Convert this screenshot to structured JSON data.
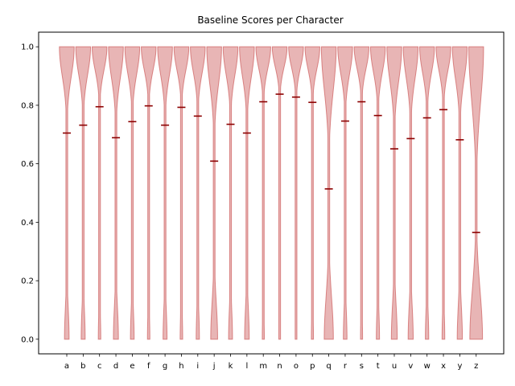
{
  "chart_data": {
    "type": "violin",
    "title": "Baseline Scores per Character",
    "xlabel": "",
    "ylabel": "",
    "ylim": [
      -0.05,
      1.05
    ],
    "yticks": [
      0.0,
      0.2,
      0.4,
      0.6,
      0.8,
      1.0
    ],
    "ytick_labels": [
      "0.0",
      "0.2",
      "0.4",
      "0.6",
      "0.8",
      "1.0"
    ],
    "categories": [
      "a",
      "b",
      "c",
      "d",
      "e",
      "f",
      "g",
      "h",
      "i",
      "j",
      "k",
      "l",
      "m",
      "n",
      "o",
      "p",
      "q",
      "r",
      "s",
      "t",
      "u",
      "v",
      "w",
      "x",
      "y",
      "z"
    ],
    "means": [
      0.705,
      0.732,
      0.795,
      0.689,
      0.744,
      0.798,
      0.732,
      0.793,
      0.763,
      0.609,
      0.735,
      0.705,
      0.812,
      0.838,
      0.828,
      0.81,
      0.514,
      0.746,
      0.812,
      0.765,
      0.651,
      0.686,
      0.757,
      0.785,
      0.682,
      0.365
    ],
    "range": [
      0.0,
      1.0
    ],
    "colors": {
      "body": "#cd5c5c",
      "mean_line": "#8b0000"
    }
  },
  "_internal": {}
}
